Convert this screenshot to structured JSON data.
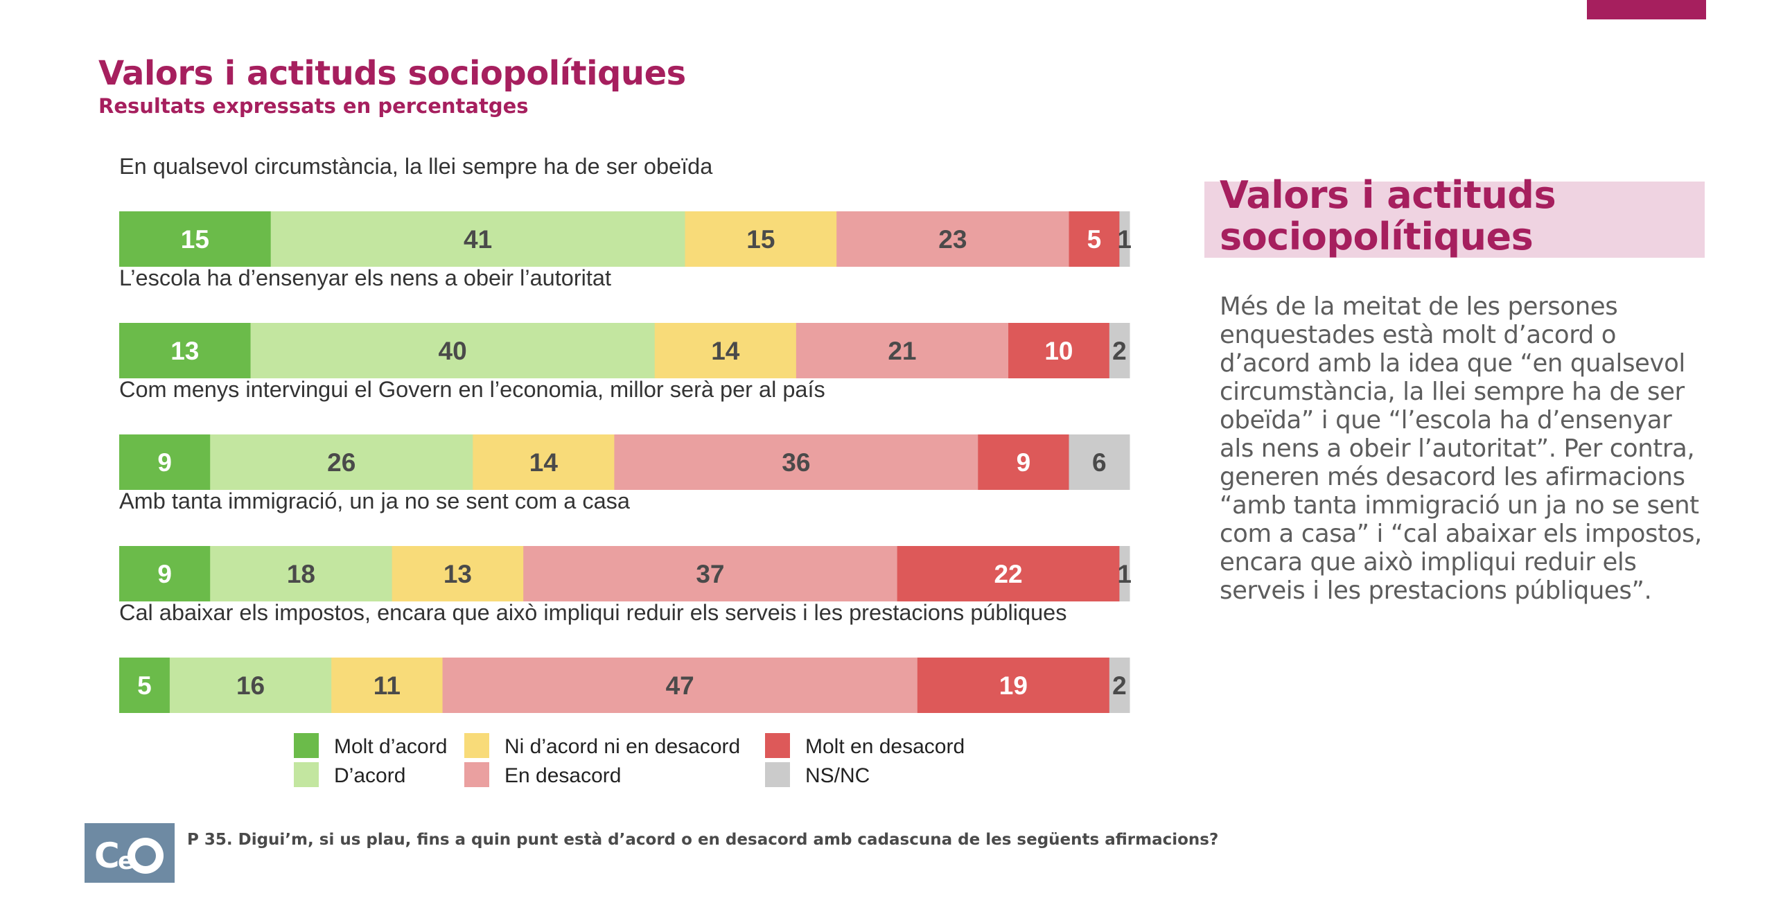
{
  "page": {
    "title": "Valors i actituds sociopolítiques",
    "subtitle": "Resultats expressats en percentatges"
  },
  "sidebar": {
    "title": "Valors i actituds sociopolítiques",
    "body": "Més de la meitat de les persones enquestades està molt d’acord o d’acord amb la idea que “en qualsevol circumstància, la llei sempre ha de ser obeïda” i que “l’escola ha d’ensenyar als nens a obeir l’autoritat”. Per contra, generen més desacord les afirmacions “amb tanta immigració un ja no se sent com a casa” i “cal abaixar els impostos, encara que això impliqui reduir els serveis i les prestacions públiques”."
  },
  "footer": {
    "logo": "CeO",
    "question": "P 35. Digui’m, si us plau, fins a quin punt està d’acord o en desacord amb cadascuna de les següents afirmacions?"
  },
  "colors": {
    "brand": "#a61f5e",
    "molt_acord": "#6bbb4a",
    "acord": "#c3e6a0",
    "neutral": "#f8db79",
    "desacord": "#eaa0a0",
    "molt_desacord": "#dd5959",
    "nsnc": "#cbcbcb"
  },
  "chart_data": {
    "type": "bar",
    "orientation": "horizontal",
    "stacked": true,
    "unit": "%",
    "legend_position": "bottom",
    "categories": [
      "En qualsevol circumstància, la llei sempre ha de ser obeïda",
      "L’escola ha d’ensenyar els nens a obeir l’autoritat",
      "Com menys intervingui el Govern en l’economia, millor serà per al país",
      "Amb tanta immigració, un ja no se sent com a casa",
      "Cal abaixar els impostos, encara que això impliqui reduir els serveis i les prestacions públiques"
    ],
    "series": [
      {
        "name": "Molt d’acord",
        "color": "#6bbb4a",
        "label_color": "#ffffff",
        "values": [
          15,
          13,
          9,
          9,
          5
        ]
      },
      {
        "name": "D’acord",
        "color": "#c3e6a0",
        "label_color": "#4a4a4a",
        "values": [
          41,
          40,
          26,
          18,
          16
        ]
      },
      {
        "name": "Ni d’acord ni en desacord",
        "color": "#f8db79",
        "label_color": "#4a4a4a",
        "values": [
          15,
          14,
          14,
          13,
          11
        ]
      },
      {
        "name": "En desacord",
        "color": "#eaa0a0",
        "label_color": "#4a4a4a",
        "values": [
          23,
          21,
          36,
          37,
          47
        ]
      },
      {
        "name": "Molt en desacord",
        "color": "#dd5959",
        "label_color": "#ffffff",
        "values": [
          5,
          10,
          9,
          22,
          19
        ]
      },
      {
        "name": "NS/NC",
        "color": "#cbcbcb",
        "label_color": "#4a4a4a",
        "values": [
          1,
          2,
          6,
          1,
          2
        ]
      }
    ]
  }
}
